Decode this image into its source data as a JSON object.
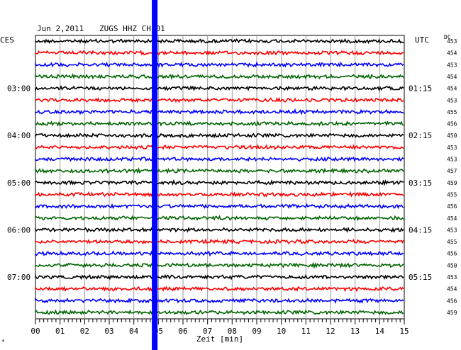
{
  "header": {
    "date": "Jun 2,2011",
    "station": "ZUGS HHZ CH 01"
  },
  "left_label": "CES",
  "right_label": "UTC",
  "dc_label": "DC",
  "x_axis_label": "Zeit [min]",
  "footnote_mark": "*",
  "chart_data": {
    "type": "line",
    "title": "Jun 2,2011   ZUGS HHZ CH 01",
    "xlabel": "Zeit [min]",
    "xlim": [
      0,
      15
    ],
    "x_ticks": [
      "00",
      "01",
      "02",
      "03",
      "04",
      "05",
      "06",
      "07",
      "08",
      "09",
      "10",
      "11",
      "12",
      "13",
      "14",
      "15"
    ],
    "trace_colors": [
      "#000000",
      "#ff0000",
      "#0000ff",
      "#006400"
    ],
    "rows": 24,
    "local_time_labels": [
      {
        "row": 4,
        "text": "03:00"
      },
      {
        "row": 8,
        "text": "04:00"
      },
      {
        "row": 12,
        "text": "05:00"
      },
      {
        "row": 16,
        "text": "06:00"
      },
      {
        "row": 20,
        "text": "07:00"
      }
    ],
    "utc_labels": [
      {
        "row": 4,
        "text": "01:15"
      },
      {
        "row": 8,
        "text": "02:15"
      },
      {
        "row": 12,
        "text": "03:15"
      },
      {
        "row": 16,
        "text": "04:15"
      },
      {
        "row": 20,
        "text": "05:15"
      }
    ],
    "dc_offsets": [
      "453",
      "454",
      "453",
      "454",
      "454",
      "453",
      "455",
      "456",
      "450",
      "453",
      "453",
      "457",
      "459",
      "455",
      "456",
      "454",
      "453",
      "455",
      "456",
      "450",
      "453",
      "454",
      "456",
      "459"
    ],
    "marker": {
      "minute": 4.85,
      "color": "#0000ff",
      "note": "vertical blue band"
    },
    "grid": true
  }
}
